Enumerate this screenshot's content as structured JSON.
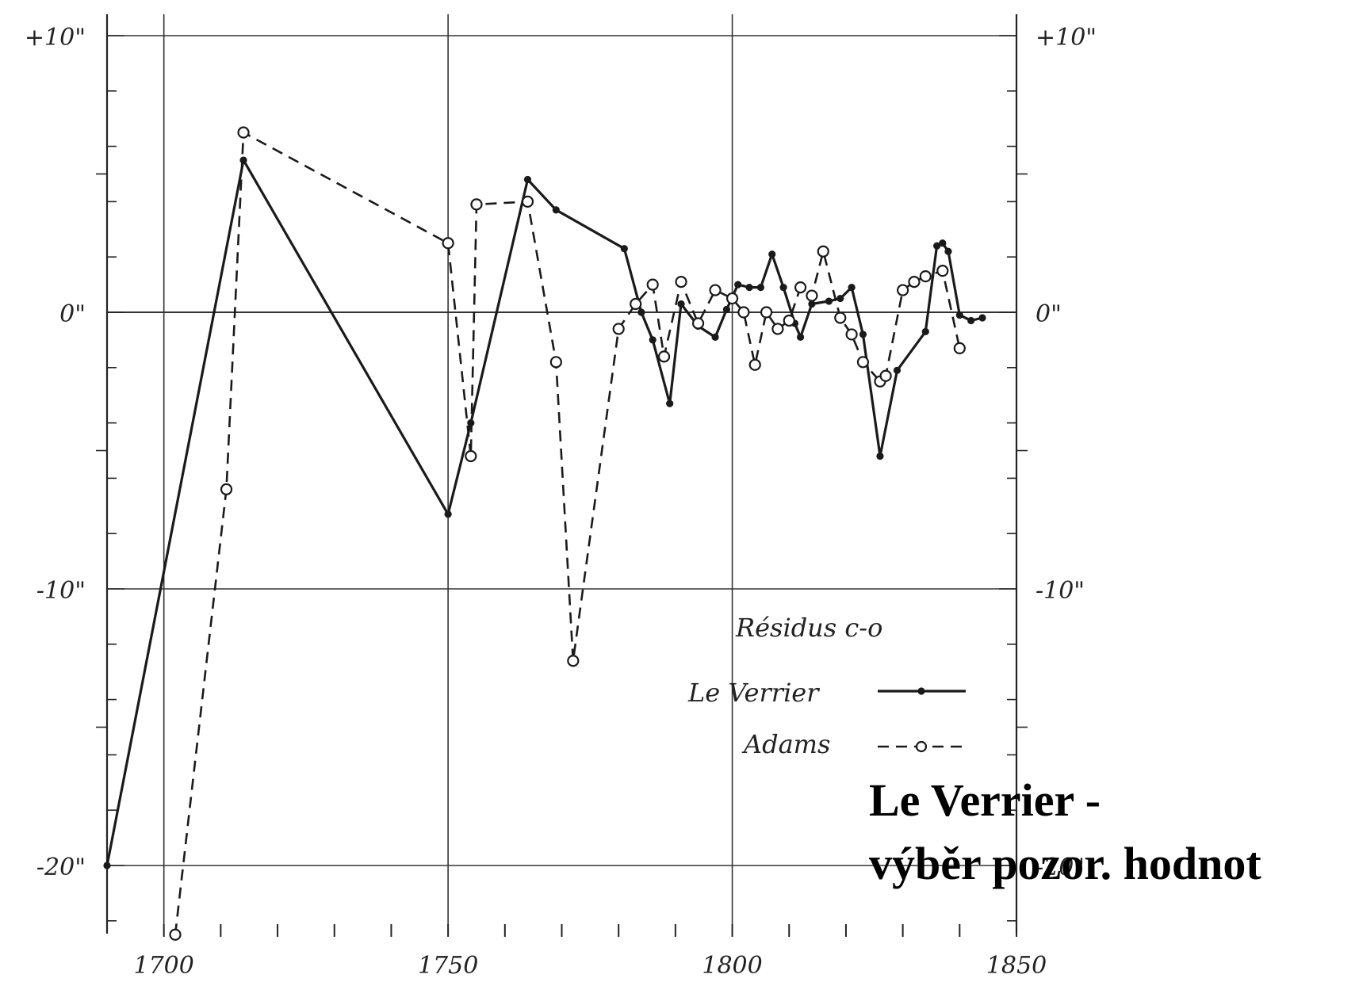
{
  "chart_data": {
    "type": "line",
    "title": "",
    "xlabel": "",
    "ylabel": "",
    "xlim": [
      1690,
      1850
    ],
    "ylim": [
      -22.5,
      10
    ],
    "x_ticks": [
      1700,
      1750,
      1800,
      1850
    ],
    "x_tick_labels": [
      "1700",
      "1750",
      "1800",
      "1850"
    ],
    "y_ticks_left": [
      {
        "value": 10,
        "label": "+10\""
      },
      {
        "value": 0,
        "label": "0\""
      },
      {
        "value": -10,
        "label": "-10\""
      },
      {
        "value": -20,
        "label": "-20\""
      }
    ],
    "y_ticks_right": [
      {
        "value": 10,
        "label": "+10\""
      },
      {
        "value": 0,
        "label": "0\""
      },
      {
        "value": -10,
        "label": "-10\""
      },
      {
        "value": -20,
        "label": "-20\""
      }
    ],
    "grid": true,
    "legend": {
      "title": "Résidus c-o",
      "placement": "lower-right"
    },
    "series": [
      {
        "name": "Le Verrier",
        "style": "solid",
        "marker": "filled-dot",
        "color": "#1a1a1a",
        "x": [
          1690,
          1714,
          1750,
          1754,
          1764,
          1769,
          1781,
          1784,
          1786,
          1789,
          1791,
          1794,
          1797,
          1799,
          1801,
          1803,
          1805,
          1807,
          1809,
          1811,
          1812,
          1814,
          1817,
          1819,
          1821,
          1823,
          1826,
          1829,
          1834,
          1836,
          1837,
          1838,
          1840,
          1842,
          1844
        ],
        "y": [
          -20.0,
          5.5,
          -7.3,
          -4.0,
          4.8,
          3.7,
          2.3,
          0.0,
          -1.0,
          -3.3,
          0.3,
          -0.5,
          -0.9,
          0.1,
          1.0,
          0.9,
          0.9,
          2.1,
          0.9,
          -0.4,
          -0.9,
          0.3,
          0.4,
          0.5,
          0.9,
          -0.8,
          -5.2,
          -2.1,
          -0.7,
          2.4,
          2.5,
          2.2,
          -0.1,
          -0.3,
          -0.2
        ]
      },
      {
        "name": "Adams",
        "style": "dashed",
        "marker": "open-circle",
        "color": "#1a1a1a",
        "x": [
          1702,
          1711,
          1714,
          1750,
          1754,
          1755,
          1764,
          1769,
          1772,
          1780,
          1783,
          1786,
          1788,
          1791,
          1794,
          1797,
          1800,
          1802,
          1804,
          1806,
          1808,
          1810,
          1812,
          1814,
          1816,
          1819,
          1821,
          1823,
          1826,
          1827,
          1830,
          1832,
          1834,
          1837,
          1840
        ],
        "y": [
          -22.5,
          -6.4,
          6.5,
          2.5,
          -5.2,
          3.9,
          4.0,
          -1.8,
          -12.6,
          -0.6,
          0.3,
          1.0,
          -1.6,
          1.1,
          -0.4,
          0.8,
          0.5,
          0.0,
          -1.9,
          0.0,
          -0.6,
          -0.3,
          0.9,
          0.6,
          2.2,
          -0.2,
          -0.8,
          -1.8,
          -2.5,
          -2.3,
          0.8,
          1.1,
          1.3,
          1.5,
          -1.3
        ]
      }
    ]
  },
  "overlay": {
    "line1": "Le Verrier -",
    "line2": "výběr pozor. hodnot"
  }
}
